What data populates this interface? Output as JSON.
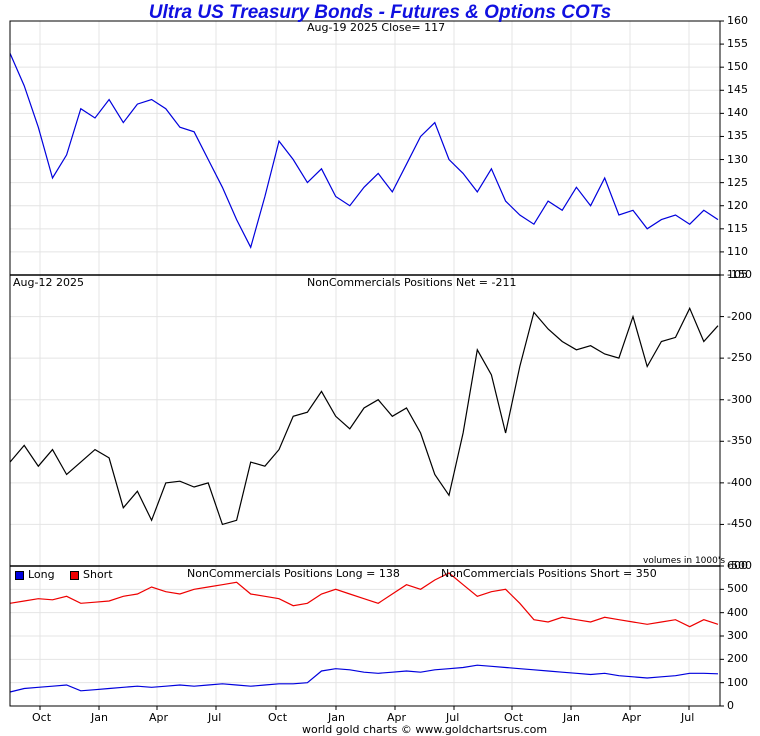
{
  "header": {
    "title": "Ultra US Treasury Bonds - Futures & Options COTs",
    "price_label": "Aug-19  2025   Close= 117",
    "net_date_label": "Aug-12  2025",
    "net_label": "NonCommercials Positions Net = -211",
    "volumes_note": "volumes in 1000's",
    "long_label": "NonCommercials Positions Long = 138",
    "short_label": "NonCommercials Positions Short = 350",
    "legend_long": "Long",
    "legend_short": "Short",
    "footer": "world gold charts © www.goldchartsrus.com"
  },
  "colors": {
    "price": "#0000dd",
    "net": "#000000",
    "long": "#0000dd",
    "short": "#ee0000",
    "grid": "#e4e4e4"
  },
  "chart_data": [
    {
      "type": "line",
      "title": "Aug-19  2025   Close= 117",
      "ylim": [
        105,
        160
      ],
      "y_ticks": [
        160,
        155,
        150,
        145,
        140,
        135,
        130,
        125,
        120,
        115,
        110,
        105
      ],
      "x": [
        0,
        0.02,
        0.04,
        0.06,
        0.08,
        0.1,
        0.12,
        0.14,
        0.16,
        0.18,
        0.2,
        0.22,
        0.24,
        0.26,
        0.28,
        0.3,
        0.32,
        0.34,
        0.36,
        0.38,
        0.4,
        0.42,
        0.44,
        0.46,
        0.48,
        0.5,
        0.52,
        0.54,
        0.56,
        0.58,
        0.6,
        0.62,
        0.64,
        0.66,
        0.68,
        0.7,
        0.72,
        0.74,
        0.76,
        0.78,
        0.8,
        0.82,
        0.84,
        0.86,
        0.88,
        0.9,
        0.92,
        0.94,
        0.96,
        0.98,
        1
      ],
      "series": [
        {
          "values": [
            153,
            146,
            137,
            126,
            131,
            141,
            139,
            143,
            138,
            142,
            143,
            141,
            137,
            136,
            130,
            124,
            117,
            111,
            122,
            134,
            130,
            125,
            128,
            122,
            120,
            124,
            127,
            123,
            129,
            135,
            138,
            130,
            127,
            123,
            128,
            121,
            118,
            116,
            121,
            119,
            124,
            120,
            126,
            118,
            119,
            115,
            117,
            118,
            116,
            119,
            117
          ]
        }
      ]
    },
    {
      "type": "line",
      "title": "NonCommercials Positions Net = -211",
      "ylim": [
        -500,
        -150
      ],
      "y_ticks": [
        -150,
        -200,
        -250,
        -300,
        -350,
        -400,
        -450,
        -500
      ],
      "x": [
        0,
        0.02,
        0.04,
        0.06,
        0.08,
        0.1,
        0.12,
        0.14,
        0.16,
        0.18,
        0.2,
        0.22,
        0.24,
        0.26,
        0.28,
        0.3,
        0.32,
        0.34,
        0.36,
        0.38,
        0.4,
        0.42,
        0.44,
        0.46,
        0.48,
        0.5,
        0.52,
        0.54,
        0.56,
        0.58,
        0.6,
        0.62,
        0.64,
        0.66,
        0.68,
        0.7,
        0.72,
        0.74,
        0.76,
        0.78,
        0.8,
        0.82,
        0.84,
        0.86,
        0.88,
        0.9,
        0.92,
        0.94,
        0.96,
        0.98,
        1
      ],
      "series": [
        {
          "values": [
            -375,
            -355,
            -380,
            -360,
            -390,
            -375,
            -360,
            -370,
            -430,
            -410,
            -445,
            -400,
            -398,
            -405,
            -400,
            -450,
            -445,
            -375,
            -380,
            -360,
            -320,
            -315,
            -290,
            -320,
            -335,
            -310,
            -300,
            -320,
            -310,
            -340,
            -390,
            -415,
            -340,
            -240,
            -270,
            -340,
            -260,
            -195,
            -215,
            -230,
            -240,
            -235,
            -245,
            -250,
            -200,
            -260,
            -230,
            -225,
            -190,
            -230,
            -211
          ]
        }
      ]
    },
    {
      "type": "line",
      "ylim": [
        0,
        600
      ],
      "y_ticks": [
        600,
        500,
        400,
        300,
        200,
        100,
        0
      ],
      "x_tick_labels": [
        "Oct",
        "Jan",
        "Apr",
        "Jul",
        "Oct",
        "Jan",
        "Apr",
        "Jul",
        "Oct",
        "Jan",
        "Apr",
        "Jul"
      ],
      "x": [
        0,
        0.02,
        0.04,
        0.06,
        0.08,
        0.1,
        0.12,
        0.14,
        0.16,
        0.18,
        0.2,
        0.22,
        0.24,
        0.26,
        0.28,
        0.3,
        0.32,
        0.34,
        0.36,
        0.38,
        0.4,
        0.42,
        0.44,
        0.46,
        0.48,
        0.5,
        0.52,
        0.54,
        0.56,
        0.58,
        0.6,
        0.62,
        0.64,
        0.66,
        0.68,
        0.7,
        0.72,
        0.74,
        0.76,
        0.78,
        0.8,
        0.82,
        0.84,
        0.86,
        0.88,
        0.9,
        0.92,
        0.94,
        0.96,
        0.98,
        1
      ],
      "series": [
        {
          "name": "Long",
          "values": [
            60,
            75,
            80,
            85,
            90,
            65,
            70,
            75,
            80,
            85,
            80,
            85,
            90,
            85,
            90,
            95,
            90,
            85,
            90,
            95,
            95,
            100,
            150,
            160,
            155,
            145,
            140,
            145,
            150,
            145,
            155,
            160,
            165,
            175,
            170,
            165,
            160,
            155,
            150,
            145,
            140,
            135,
            140,
            130,
            125,
            120,
            125,
            130,
            140,
            140,
            138
          ]
        },
        {
          "name": "Short",
          "values": [
            440,
            450,
            460,
            455,
            470,
            440,
            445,
            450,
            470,
            480,
            510,
            490,
            480,
            500,
            510,
            520,
            530,
            480,
            470,
            460,
            430,
            440,
            480,
            500,
            480,
            460,
            440,
            480,
            520,
            500,
            540,
            570,
            520,
            470,
            490,
            500,
            440,
            370,
            360,
            380,
            370,
            360,
            380,
            370,
            360,
            350,
            360,
            370,
            340,
            370,
            350
          ]
        }
      ]
    }
  ]
}
